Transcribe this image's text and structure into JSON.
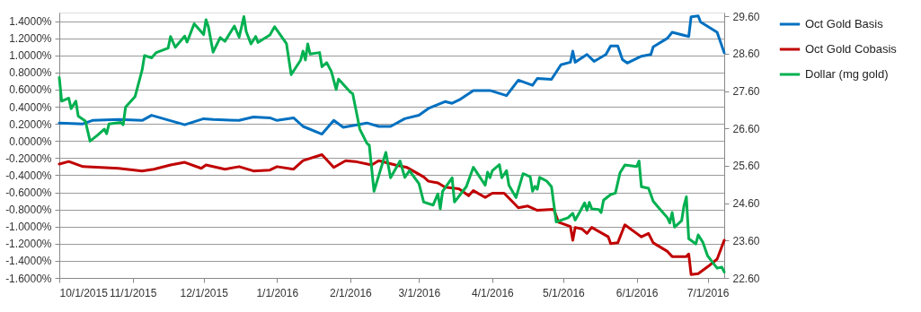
{
  "chart_data": {
    "type": "line",
    "xlim": [
      "2015-10-01",
      "2016-07-08"
    ],
    "xticks": [
      {
        "value": "2015-10-01",
        "label": "10/1/2015"
      },
      {
        "value": "2015-11-01",
        "label": "11/1/2015"
      },
      {
        "value": "2015-12-01",
        "label": "12/1/2015"
      },
      {
        "value": "2016-01-01",
        "label": "1/1/2016"
      },
      {
        "value": "2016-02-01",
        "label": "2/1/2016"
      },
      {
        "value": "2016-03-01",
        "label": "3/1/2016"
      },
      {
        "value": "2016-04-01",
        "label": "4/1/2016"
      },
      {
        "value": "2016-05-01",
        "label": "5/1/2016"
      },
      {
        "value": "2016-06-01",
        "label": "6/1/2016"
      },
      {
        "value": "2016-07-01",
        "label": "7/1/2016"
      }
    ],
    "ylim": [
      -1.6,
      1.5
    ],
    "yticks": [
      {
        "value": -1.6,
        "label": "-1.6000%"
      },
      {
        "value": -1.4,
        "label": "-1.4000%"
      },
      {
        "value": -1.2,
        "label": "-1.2000%"
      },
      {
        "value": -1.0,
        "label": "-1.0000%"
      },
      {
        "value": -0.8,
        "label": "-0.8000%"
      },
      {
        "value": -0.6,
        "label": "-0.6000%"
      },
      {
        "value": -0.4,
        "label": "-0.4000%"
      },
      {
        "value": -0.2,
        "label": "-0.2000%"
      },
      {
        "value": 0,
        "label": "0.0000%"
      },
      {
        "value": 0.2,
        "label": "0.2000%"
      },
      {
        "value": 0.4,
        "label": "0.4000%"
      },
      {
        "value": 0.6,
        "label": "0.6000%"
      },
      {
        "value": 0.8,
        "label": "0.8000%"
      },
      {
        "value": 1.0,
        "label": "1.0000%"
      },
      {
        "value": 1.2,
        "label": "1.2000%"
      },
      {
        "value": 1.4,
        "label": "1.4000%"
      }
    ],
    "y2lim": [
      22.6,
      29.7
    ],
    "y2ticks": [
      {
        "value": 22.6,
        "label": "22.60"
      },
      {
        "value": 23.6,
        "label": "23.60"
      },
      {
        "value": 24.6,
        "label": "24.60"
      },
      {
        "value": 25.6,
        "label": "25.60"
      },
      {
        "value": 26.6,
        "label": "26.60"
      },
      {
        "value": 27.6,
        "label": "27.60"
      },
      {
        "value": 28.6,
        "label": "28.60"
      },
      {
        "value": 29.6,
        "label": "29.60"
      }
    ],
    "grid": "y",
    "legend": "right",
    "marker": "none",
    "line_style": "solid",
    "series": [
      {
        "name": "Oct Gold Basis",
        "color": "#0070c0",
        "x": [
          "2015-10-01",
          "2015-10-11",
          "2015-10-15",
          "2015-10-26",
          "2015-11-05",
          "2015-11-09",
          "2015-11-14",
          "2015-11-23",
          "2015-12-01",
          "2015-12-05",
          "2015-12-16",
          "2015-12-22",
          "2015-12-29",
          "2016-01-01",
          "2016-01-08",
          "2016-01-12",
          "2016-01-20",
          "2016-01-25",
          "2016-01-29",
          "2016-02-08",
          "2016-02-13",
          "2016-02-18",
          "2016-02-24",
          "2016-03-01",
          "2016-03-05",
          "2016-03-12",
          "2016-03-15",
          "2016-03-18",
          "2016-03-24",
          "2016-03-31",
          "2016-04-07",
          "2016-04-12",
          "2016-04-18",
          "2016-04-20",
          "2016-04-26",
          "2016-04-30",
          "2016-05-04",
          "2016-05-05",
          "2016-05-06",
          "2016-05-11",
          "2016-05-14",
          "2016-05-19",
          "2016-05-21",
          "2016-05-24",
          "2016-05-26",
          "2016-05-28",
          "2016-06-03",
          "2016-06-07",
          "2016-06-08",
          "2016-06-14",
          "2016-06-16",
          "2016-06-23",
          "2016-06-24",
          "2016-06-27",
          "2016-06-28",
          "2016-07-05",
          "2016-07-08"
        ],
        "values": [
          0.21,
          0.2,
          0.24,
          0.25,
          0.24,
          0.3,
          0.26,
          0.19,
          0.26,
          0.25,
          0.24,
          0.28,
          0.27,
          0.24,
          0.27,
          0.17,
          0.08,
          0.24,
          0.16,
          0.21,
          0.17,
          0.17,
          0.26,
          0.3,
          0.38,
          0.46,
          0.44,
          0.48,
          0.59,
          0.59,
          0.53,
          0.71,
          0.65,
          0.73,
          0.72,
          0.89,
          0.92,
          1.05,
          0.92,
          1.01,
          0.93,
          1.01,
          1.11,
          1.11,
          0.95,
          0.91,
          0.99,
          1.01,
          1.1,
          1.2,
          1.27,
          1.22,
          1.45,
          1.46,
          1.39,
          1.27,
          1.03
        ]
      },
      {
        "name": "Oct Gold Cobasis",
        "color": "#c00000",
        "x": [
          "2015-10-01",
          "2015-10-05",
          "2015-10-11",
          "2015-10-26",
          "2015-11-05",
          "2015-11-10",
          "2015-11-17",
          "2015-11-23",
          "2015-11-30",
          "2015-12-02",
          "2015-12-10",
          "2015-12-16",
          "2015-12-22",
          "2015-12-29",
          "2016-01-01",
          "2016-01-08",
          "2016-01-12",
          "2016-01-20",
          "2016-01-25",
          "2016-01-30",
          "2016-02-03",
          "2016-02-10",
          "2016-02-13",
          "2016-02-20",
          "2016-02-25",
          "2016-03-03",
          "2016-03-05",
          "2016-03-09",
          "2016-03-12",
          "2016-03-18",
          "2016-03-22",
          "2016-03-24",
          "2016-03-29",
          "2016-04-01",
          "2016-04-06",
          "2016-04-12",
          "2016-04-16",
          "2016-04-20",
          "2016-04-27",
          "2016-04-29",
          "2016-05-04",
          "2016-05-05",
          "2016-05-06",
          "2016-05-09",
          "2016-05-11",
          "2016-05-13",
          "2016-05-20",
          "2016-05-21",
          "2016-05-24",
          "2016-05-26",
          "2016-05-27",
          "2016-06-01",
          "2016-06-03",
          "2016-06-06",
          "2016-06-08",
          "2016-06-14",
          "2016-06-16",
          "2016-06-22",
          "2016-06-23",
          "2016-06-24",
          "2016-06-27",
          "2016-07-01",
          "2016-07-05",
          "2016-07-08"
        ],
        "values": [
          -0.27,
          -0.24,
          -0.3,
          -0.32,
          -0.35,
          -0.33,
          -0.28,
          -0.25,
          -0.32,
          -0.28,
          -0.33,
          -0.3,
          -0.35,
          -0.34,
          -0.3,
          -0.33,
          -0.23,
          -0.16,
          -0.31,
          -0.23,
          -0.24,
          -0.28,
          -0.23,
          -0.28,
          -0.31,
          -0.42,
          -0.47,
          -0.49,
          -0.54,
          -0.56,
          -0.64,
          -0.58,
          -0.66,
          -0.61,
          -0.61,
          -0.78,
          -0.76,
          -0.81,
          -0.8,
          -0.95,
          -1.0,
          -1.16,
          -1.01,
          -1.03,
          -1.08,
          -1.01,
          -1.12,
          -1.2,
          -1.19,
          -1.05,
          -0.98,
          -1.08,
          -1.12,
          -1.08,
          -1.19,
          -1.29,
          -1.35,
          -1.35,
          -1.32,
          -1.56,
          -1.55,
          -1.47,
          -1.38,
          -1.16
        ]
      },
      {
        "name": "Dollar (mg gold)",
        "color": "#00b050",
        "axis": "y2",
        "x": [
          "2015-10-01",
          "2015-10-02",
          "2015-10-05",
          "2015-10-06",
          "2015-10-08",
          "2015-10-09",
          "2015-10-12",
          "2015-10-14",
          "2015-10-17",
          "2015-10-20",
          "2015-10-21",
          "2015-10-22",
          "2015-10-27",
          "2015-10-28",
          "2015-10-29",
          "2015-11-02",
          "2015-11-05",
          "2015-11-06",
          "2015-11-09",
          "2015-11-11",
          "2015-11-16",
          "2015-11-17",
          "2015-11-19",
          "2015-11-23",
          "2015-11-24",
          "2015-11-27",
          "2015-12-01",
          "2015-12-02",
          "2015-12-03",
          "2015-12-05",
          "2015-12-08",
          "2015-12-10",
          "2015-12-14",
          "2015-12-16",
          "2015-12-18",
          "2015-12-19",
          "2015-12-21",
          "2015-12-23",
          "2015-12-24",
          "2015-12-29",
          "2015-12-31",
          "2016-01-05",
          "2016-01-07",
          "2016-01-11",
          "2016-01-12",
          "2016-01-13",
          "2016-01-14",
          "2016-01-15",
          "2016-01-19",
          "2016-01-20",
          "2016-01-22",
          "2016-01-24",
          "2016-01-26",
          "2016-01-27",
          "2016-02-01",
          "2016-02-02",
          "2016-02-05",
          "2016-02-08",
          "2016-02-09",
          "2016-02-11",
          "2016-02-16",
          "2016-02-18",
          "2016-02-22",
          "2016-02-24",
          "2016-02-26",
          "2016-03-01",
          "2016-03-03",
          "2016-03-07",
          "2016-03-09",
          "2016-03-10",
          "2016-03-11",
          "2016-03-15",
          "2016-03-16",
          "2016-03-21",
          "2016-03-24",
          "2016-03-29",
          "2016-03-30",
          "2016-03-31",
          "2016-04-01",
          "2016-04-04",
          "2016-04-05",
          "2016-04-07",
          "2016-04-08",
          "2016-04-11",
          "2016-04-14",
          "2016-04-17",
          "2016-04-18",
          "2016-04-19",
          "2016-04-20",
          "2016-04-21",
          "2016-04-24",
          "2016-04-26",
          "2016-04-28",
          "2016-05-03",
          "2016-05-05",
          "2016-05-06",
          "2016-05-08",
          "2016-05-10",
          "2016-05-11",
          "2016-05-12",
          "2016-05-13",
          "2016-05-16",
          "2016-05-17",
          "2016-05-18",
          "2016-05-21",
          "2016-05-23",
          "2016-05-25",
          "2016-05-27",
          "2016-06-01",
          "2016-06-02",
          "2016-06-03",
          "2016-06-06",
          "2016-06-08",
          "2016-06-10",
          "2016-06-14",
          "2016-06-15",
          "2016-06-16",
          "2016-06-17",
          "2016-06-20",
          "2016-06-21",
          "2016-06-22",
          "2016-06-23",
          "2016-06-26",
          "2016-06-27",
          "2016-06-29",
          "2016-07-01",
          "2016-07-05",
          "2016-07-07",
          "2016-07-08"
        ],
        "values": [
          27.96,
          27.33,
          27.41,
          27.13,
          27.33,
          26.93,
          26.8,
          26.26,
          26.41,
          26.58,
          26.46,
          26.72,
          26.76,
          26.7,
          27.17,
          27.45,
          28.16,
          28.55,
          28.49,
          28.63,
          28.75,
          29.06,
          28.77,
          29.07,
          28.91,
          29.4,
          29.11,
          29.51,
          29.32,
          28.64,
          29.03,
          28.93,
          29.34,
          29.04,
          29.59,
          29.19,
          28.86,
          29.06,
          28.9,
          29.1,
          29.32,
          28.87,
          28.04,
          28.43,
          28.67,
          28.43,
          28.86,
          28.59,
          28.63,
          28.25,
          28.36,
          28.12,
          27.64,
          27.92,
          27.57,
          27.53,
          26.58,
          26.2,
          26.15,
          24.92,
          25.96,
          25.28,
          25.73,
          25.29,
          25.47,
          25.12,
          24.63,
          24.55,
          24.85,
          24.45,
          24.92,
          25.28,
          24.63,
          25.04,
          25.56,
          25.08,
          25.43,
          25.28,
          25.47,
          25.63,
          25.28,
          25.47,
          25.08,
          24.75,
          25.39,
          25.31,
          24.92,
          25.05,
          24.97,
          25.29,
          25.19,
          25.04,
          24.1,
          24.21,
          24.33,
          24.15,
          24.37,
          24.61,
          24.41,
          24.62,
          24.45,
          24.43,
          24.35,
          24.68,
          24.83,
          24.87,
          25.42,
          25.62,
          25.58,
          25.73,
          25.04,
          25.0,
          24.65,
          24.5,
          24.21,
          24.07,
          24.35,
          23.96,
          24.13,
          24.53,
          24.77,
          23.65,
          23.51,
          23.75,
          23.55,
          23.19,
          22.86,
          22.89,
          22.76
        ]
      }
    ]
  }
}
